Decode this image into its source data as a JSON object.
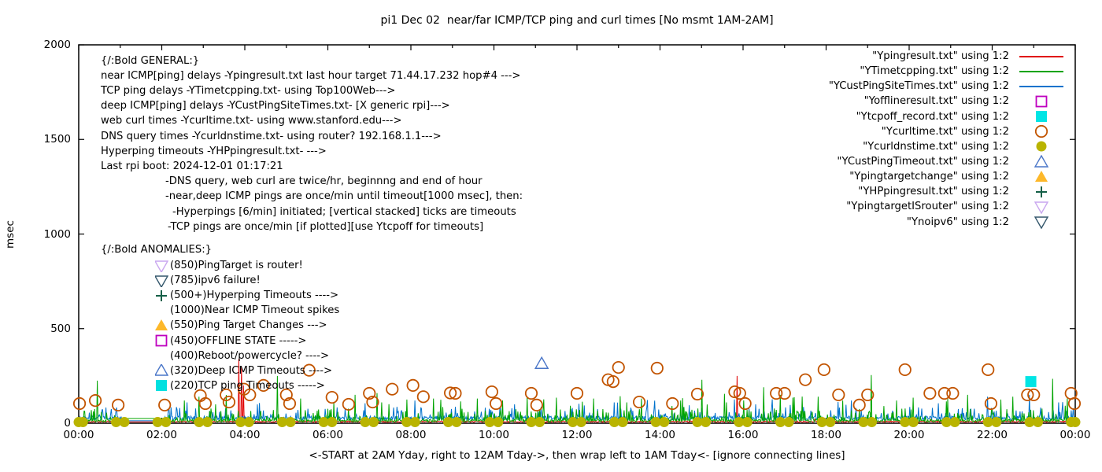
{
  "chart_data": {
    "type": "line",
    "title": "pi1 Dec 02  near/far ICMP/TCP ping and curl times [No msmt 1AM-2AM]",
    "xlabel": "<-START at 2AM Yday, right to 12AM Tday->, then wrap left to 1AM Tday<- [ignore connecting lines]",
    "ylabel": "msec",
    "xlim_hours": [
      0,
      24
    ],
    "ylim": [
      0,
      2000
    ],
    "grid": false,
    "legend_position": "outside-top-right",
    "x_ticks": [
      {
        "h": 0,
        "label": "00:00"
      },
      {
        "h": 2,
        "label": "02:00"
      },
      {
        "h": 4,
        "label": "04:00"
      },
      {
        "h": 6,
        "label": "06:00"
      },
      {
        "h": 8,
        "label": "08:00"
      },
      {
        "h": 10,
        "label": "10:00"
      },
      {
        "h": 12,
        "label": "12:00"
      },
      {
        "h": 14,
        "label": "14:00"
      },
      {
        "h": 16,
        "label": "16:00"
      },
      {
        "h": 18,
        "label": "18:00"
      },
      {
        "h": 20,
        "label": "20:00"
      },
      {
        "h": 22,
        "label": "22:00"
      },
      {
        "h": 24,
        "label": "00:00"
      }
    ],
    "y_ticks": [
      {
        "v": 0,
        "label": "0"
      },
      {
        "v": 500,
        "label": "500"
      },
      {
        "v": 1000,
        "label": "1000"
      },
      {
        "v": 1500,
        "label": "1500"
      },
      {
        "v": 2000,
        "label": "2000"
      }
    ],
    "no_measurement_gap_hours": [
      1.05,
      2.08
    ],
    "noise_seed": 42,
    "series": [
      {
        "id": "ypingresult",
        "label": "\"Ypingresult.txt\" using 1:2",
        "color": "#e00000",
        "style": "line",
        "noise": {
          "base": 5,
          "jitter": 7,
          "p1": 0.015,
          "s1min": 14,
          "s1range": 12,
          "gap": 7
        },
        "spikes": [
          [
            3.86,
            340
          ],
          [
            3.92,
            300
          ],
          [
            3.96,
            200
          ],
          [
            15.85,
            250
          ]
        ]
      },
      {
        "id": "ytimetcpping",
        "label": "\"YTimetcpping.txt\" using 1:2",
        "color": "#00a400",
        "style": "line",
        "noise": {
          "base": 7,
          "jitter": 14,
          "p1": 0.18,
          "s1min": 28,
          "s1range": 50,
          "p2": 0.02,
          "s2min": 80,
          "s2range": 80,
          "gap": 25
        },
        "spikes": [
          [
            0.45,
            225
          ],
          [
            2.55,
            120
          ],
          [
            2.9,
            140
          ],
          [
            3.3,
            100
          ],
          [
            4.78,
            250
          ],
          [
            5.35,
            130
          ],
          [
            6.15,
            110
          ],
          [
            6.65,
            150
          ],
          [
            7.3,
            110
          ],
          [
            7.9,
            125
          ],
          [
            8.55,
            130
          ],
          [
            9.2,
            115
          ],
          [
            9.6,
            130
          ],
          [
            10.2,
            120
          ],
          [
            10.8,
            140
          ],
          [
            11.5,
            135
          ],
          [
            12.4,
            130
          ],
          [
            13.2,
            110
          ],
          [
            13.55,
            130
          ],
          [
            14.5,
            120
          ],
          [
            15.0,
            230
          ],
          [
            15.6,
            110
          ],
          [
            16.5,
            190
          ],
          [
            16.9,
            150
          ],
          [
            17.8,
            140
          ],
          [
            18.4,
            120
          ],
          [
            19.08,
            255
          ],
          [
            19.7,
            120
          ],
          [
            20.1,
            135
          ],
          [
            20.9,
            115
          ],
          [
            21.4,
            150
          ],
          [
            22.2,
            125
          ],
          [
            22.5,
            140
          ],
          [
            23.45,
            235
          ],
          [
            23.8,
            130
          ]
        ]
      },
      {
        "id": "ycustpingsitetimes",
        "label": "\"YCustPingSiteTimes.txt\" using 1:2",
        "color": "#0072cc",
        "style": "line",
        "noise": {
          "base": 16,
          "jitter": 22,
          "p1": 0.12,
          "s1min": 42,
          "s1range": 45,
          "p2": 0.008,
          "s2min": 90,
          "s2range": 55,
          "gap": 13
        },
        "spikes": [
          [
            2.6,
            110
          ],
          [
            4.3,
            100
          ],
          [
            6.9,
            105
          ],
          [
            8.1,
            120
          ],
          [
            10.5,
            100
          ],
          [
            12.9,
            110
          ],
          [
            14.7,
            95
          ],
          [
            16.3,
            100
          ],
          [
            18.6,
            120
          ],
          [
            20.7,
            105
          ],
          [
            22.9,
            150
          ],
          [
            23.6,
            110
          ]
        ]
      },
      {
        "id": "yofflineresult",
        "label": "\"Yofflineresult.txt\" using 1:2",
        "color": "#bf00bf",
        "style": "marker",
        "marker": "open-square",
        "points": []
      },
      {
        "id": "ytcpoff-record",
        "label": "\"Ytcpoff_record.txt\" using 1:2",
        "color": "#00e5e5",
        "style": "marker",
        "marker": "filled-square",
        "points": [
          [
            22.93,
            220
          ]
        ]
      },
      {
        "id": "ycurltime",
        "label": "\"Ycurltime.txt\" using 1:2",
        "color": "#c25400",
        "style": "marker",
        "marker": "open-circle",
        "points": [
          [
            0.02,
            104
          ],
          [
            0.4,
            120
          ],
          [
            0.95,
            96
          ],
          [
            2.07,
            96
          ],
          [
            2.93,
            146
          ],
          [
            3.05,
            104
          ],
          [
            3.55,
            150
          ],
          [
            3.62,
            112
          ],
          [
            3.98,
            180
          ],
          [
            4.12,
            150
          ],
          [
            4.45,
            200
          ],
          [
            5.0,
            150
          ],
          [
            5.08,
            104
          ],
          [
            5.55,
            280
          ],
          [
            6.1,
            137
          ],
          [
            6.5,
            100
          ],
          [
            7.0,
            158
          ],
          [
            7.08,
            112
          ],
          [
            7.55,
            180
          ],
          [
            8.05,
            200
          ],
          [
            8.3,
            140
          ],
          [
            8.95,
            160
          ],
          [
            9.07,
            158
          ],
          [
            9.95,
            166
          ],
          [
            10.05,
            104
          ],
          [
            10.9,
            158
          ],
          [
            11.03,
            96
          ],
          [
            12.0,
            158
          ],
          [
            12.75,
            230
          ],
          [
            12.87,
            220
          ],
          [
            13.0,
            295
          ],
          [
            13.5,
            112
          ],
          [
            13.93,
            291
          ],
          [
            14.3,
            104
          ],
          [
            14.9,
            154
          ],
          [
            15.8,
            166
          ],
          [
            15.92,
            158
          ],
          [
            16.05,
            104
          ],
          [
            16.8,
            158
          ],
          [
            17.0,
            158
          ],
          [
            17.5,
            230
          ],
          [
            17.95,
            283
          ],
          [
            18.3,
            150
          ],
          [
            18.8,
            96
          ],
          [
            19.0,
            150
          ],
          [
            19.9,
            283
          ],
          [
            20.5,
            158
          ],
          [
            20.85,
            158
          ],
          [
            21.05,
            158
          ],
          [
            21.9,
            283
          ],
          [
            21.97,
            104
          ],
          [
            22.85,
            150
          ],
          [
            23.0,
            150
          ],
          [
            23.9,
            158
          ],
          [
            23.98,
            104
          ]
        ]
      },
      {
        "id": "ycurldnstime",
        "label": "\"Ycurldnstime.txt\" using 1:2",
        "color": "#b9b400",
        "style": "marker",
        "marker": "filled-circle",
        "points": [
          [
            0,
            6
          ],
          [
            0.1,
            6
          ],
          [
            0.9,
            6
          ],
          [
            1.1,
            6
          ],
          [
            1.9,
            6
          ],
          [
            2.1,
            6
          ],
          [
            2.9,
            6
          ],
          [
            3.1,
            6
          ],
          [
            3.9,
            6
          ],
          [
            4.1,
            6
          ],
          [
            4.9,
            6
          ],
          [
            5.1,
            6
          ],
          [
            5.9,
            6
          ],
          [
            6.1,
            6
          ],
          [
            6.9,
            6
          ],
          [
            7.1,
            6
          ],
          [
            7.9,
            6
          ],
          [
            8.1,
            6
          ],
          [
            8.9,
            6
          ],
          [
            9.1,
            6
          ],
          [
            9.9,
            6
          ],
          [
            10.1,
            6
          ],
          [
            10.9,
            6
          ],
          [
            11.1,
            6
          ],
          [
            11.9,
            6
          ],
          [
            12.1,
            6
          ],
          [
            12.9,
            6
          ],
          [
            13.1,
            6
          ],
          [
            13.9,
            6
          ],
          [
            14.1,
            6
          ],
          [
            14.9,
            6
          ],
          [
            15.1,
            6
          ],
          [
            15.9,
            6
          ],
          [
            16.1,
            6
          ],
          [
            16.9,
            6
          ],
          [
            17.1,
            6
          ],
          [
            17.9,
            6
          ],
          [
            18.1,
            6
          ],
          [
            18.9,
            6
          ],
          [
            19.1,
            6
          ],
          [
            19.9,
            6
          ],
          [
            20.1,
            6
          ],
          [
            20.9,
            6
          ],
          [
            21.1,
            6
          ],
          [
            21.9,
            6
          ],
          [
            22.1,
            6
          ],
          [
            22.9,
            6
          ],
          [
            23.1,
            6
          ],
          [
            23.9,
            6
          ],
          [
            24,
            6
          ]
        ]
      },
      {
        "id": "ycustpingtimeout",
        "label": "\"YCustPingTimeout.txt\" using 1:2",
        "color": "#4a76c8",
        "style": "marker",
        "marker": "open-triangle-up",
        "points": [
          [
            11.15,
            315
          ]
        ]
      },
      {
        "id": "ypingtargetchange",
        "label": "\"Ypingtargetchange\" using 1:2",
        "color": "#fdb82a",
        "style": "marker",
        "marker": "filled-triangle-up",
        "points": []
      },
      {
        "id": "yhppingresult",
        "label": "\"YHPpingresult.txt\" using 1:2",
        "color": "#156048",
        "style": "marker",
        "marker": "plus",
        "points": []
      },
      {
        "id": "ypingtargetisrouter",
        "label": "\"YpingtargetISrouter\" using 1:2",
        "color": "#c9a6ef",
        "style": "marker",
        "marker": "open-triangle-down",
        "points": []
      },
      {
        "id": "ynoipv6",
        "label": "\"Ynoipv6\" using 1:2",
        "color": "#33566b",
        "style": "marker",
        "marker": "open-triangle-down",
        "points": []
      }
    ]
  },
  "annotations": {
    "general": [
      {
        "x": 128,
        "text": "{/:Bold GENERAL:}"
      },
      {
        "x": 128,
        "text": "near ICMP[ping] delays -Ypingresult.txt last hour target 71.44.17.232 hop#4 --->"
      },
      {
        "x": 128,
        "text": "TCP ping delays -YTimetcpping.txt- using Top100Web--->"
      },
      {
        "x": 128,
        "text": "deep ICMP[ping] delays -YCustPingSiteTimes.txt- [X generic rpi]--->"
      },
      {
        "x": 128,
        "text": "web curl times -Ycurltime.txt- using www.stanford.edu--->"
      },
      {
        "x": 128,
        "text": "DNS query times -Ycurldnstime.txt- using router? 192.168.1.1--->"
      },
      {
        "x": 128,
        "text": "Hyperping timeouts -YHPpingresult.txt- --->"
      },
      {
        "x": 128,
        "text": "Last rpi boot: 2024-12-01 01:17:21"
      },
      {
        "x": 210,
        "text": "-DNS query, web curl are twice/hr, beginnng and end of hour"
      },
      {
        "x": 210,
        "text": "-near,deep ICMP pings are once/min until timeout[1000 msec], then:"
      },
      {
        "x": 219,
        "text": "-Hyperpings [6/min] initiated; [vertical stacked] ticks are timeouts"
      },
      {
        "x": 213,
        "text": "-TCP pings are once/min [if plotted][use Ytcpoff for timeouts]"
      }
    ],
    "anomalies_header": {
      "x": 128,
      "text": "{/:Bold ANOMALIES:}"
    },
    "anomalies": [
      {
        "marker": "open-triangle-down",
        "color": "#c9a6ef",
        "text": "(850)PingTarget is router!"
      },
      {
        "marker": "open-triangle-down",
        "color": "#33566b",
        "text": "(785)ipv6 failure!"
      },
      {
        "marker": "plus",
        "color": "#156048",
        "text": "(500+)Hyperping Timeouts ---->"
      },
      {
        "marker": null,
        "color": null,
        "text": "(1000)Near ICMP Timeout spikes"
      },
      {
        "marker": "filled-triangle-up",
        "color": "#fdb82a",
        "text": "(550)Ping Target Changes --->"
      },
      {
        "marker": "open-square",
        "color": "#bf00bf",
        "text": "(450)OFFLINE STATE ----->"
      },
      {
        "marker": null,
        "color": null,
        "text": "(400)Reboot/powercycle? ---->"
      },
      {
        "marker": "open-triangle-up",
        "color": "#4a76c8",
        "text": "(320)Deep ICMP Timeouts ---->"
      },
      {
        "marker": "filled-square",
        "color": "#00e0e0",
        "text": "(220)TCP ping Timeouts ----->"
      }
    ]
  }
}
